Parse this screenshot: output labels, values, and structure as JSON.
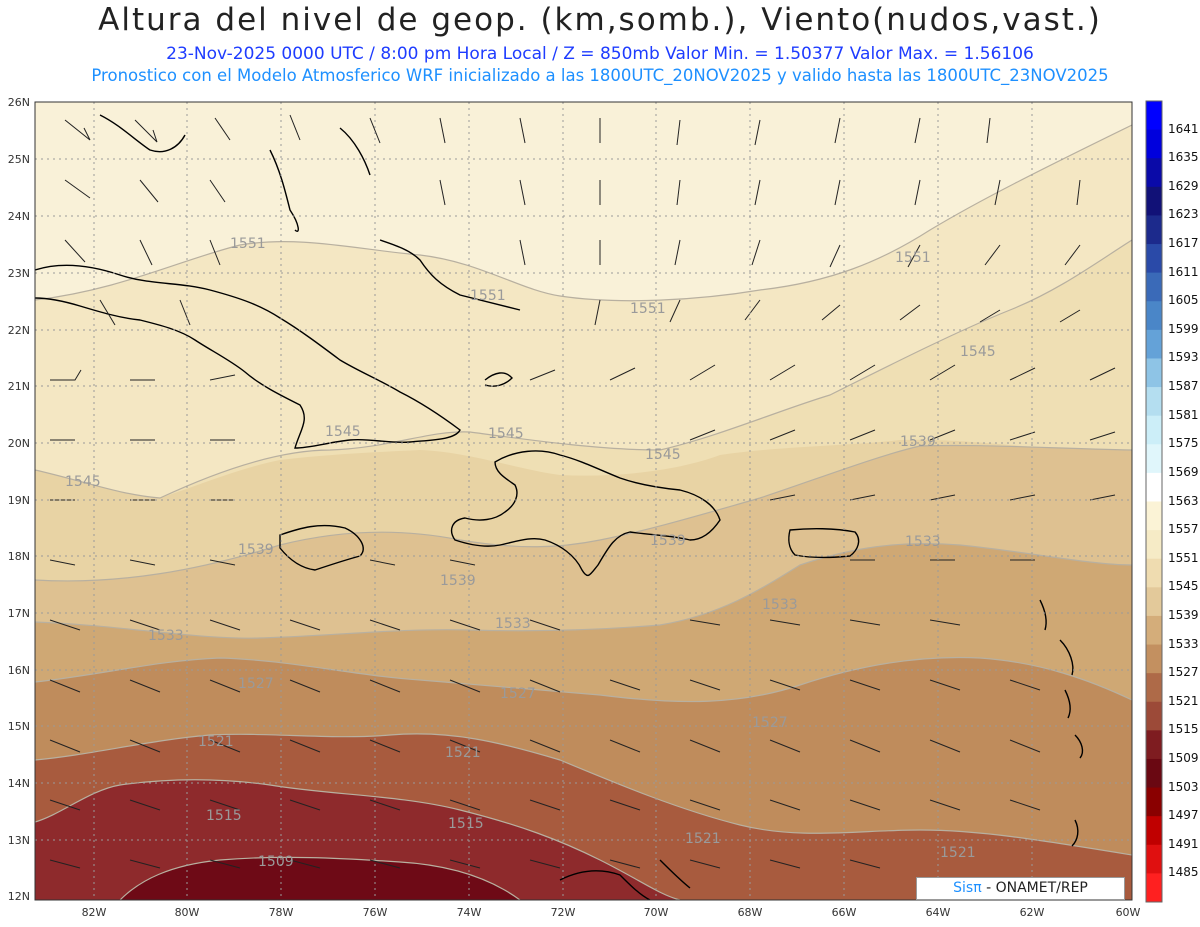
{
  "title": "Altura del nivel de geop. (km,somb.), Viento(nudos,vast.)",
  "subtitle1": "23-Nov-2025  0000 UTC / 8:00 pm Hora Local / Z = 850mb     Valor Min. = 1.50377  Valor Max. = 1.56106",
  "subtitle2": "Pronostico con el Modelo Atmosferico WRF inicializado a las 1800UTC_20NOV2025 y valido hasta las  1800UTC_23NOV2025",
  "credit": {
    "brand": "Sisπ",
    "text": " - ONAMET/REP"
  },
  "lat_labels": [
    "26N",
    "25N",
    "24N",
    "23N",
    "22N",
    "21N",
    "20N",
    "19N",
    "18N",
    "17N",
    "16N",
    "15N",
    "14N",
    "13N",
    "12N"
  ],
  "lon_labels": [
    "82W",
    "80W",
    "78W",
    "76W",
    "74W",
    "72W",
    "70W",
    "68W",
    "66W",
    "64W",
    "62W",
    "60W"
  ],
  "colorbar": {
    "labels": [
      "1641",
      "1635",
      "1629",
      "1623",
      "1617",
      "1611",
      "1605",
      "1599",
      "1593",
      "1587",
      "1581",
      "1575",
      "1569",
      "1563",
      "1557",
      "1551",
      "1545",
      "1539",
      "1533",
      "1527",
      "1521",
      "1515",
      "1509",
      "1503",
      "1497",
      "1491",
      "1485"
    ],
    "colors": [
      "#0000ff",
      "#0000dd",
      "#0a0aa8",
      "#111177",
      "#1c2a8c",
      "#2a4aa8",
      "#3a6ab8",
      "#4a86c8",
      "#64a2d8",
      "#8ec4e6",
      "#b4def0",
      "#cceef8",
      "#e0f6fb",
      "#ffffff",
      "#fbf3d6",
      "#f6ebc6",
      "#efdcb0",
      "#e3c99a",
      "#d4ad7a",
      "#c39060",
      "#ae6a48",
      "#9c4a38",
      "#7e1c20",
      "#6a0812",
      "#8a0000",
      "#c00000",
      "#e01010",
      "#ff2020"
    ]
  },
  "contour_labels": [
    "1551",
    "1551",
    "1551",
    "1551",
    "1545",
    "1545",
    "1545",
    "1545",
    "1545",
    "1539",
    "1539",
    "1539",
    "1539",
    "1533",
    "1533",
    "1533",
    "1533",
    "1527",
    "1527",
    "1527",
    "1521",
    "1521",
    "1521",
    "1521",
    "1515",
    "1515",
    "1509"
  ]
}
